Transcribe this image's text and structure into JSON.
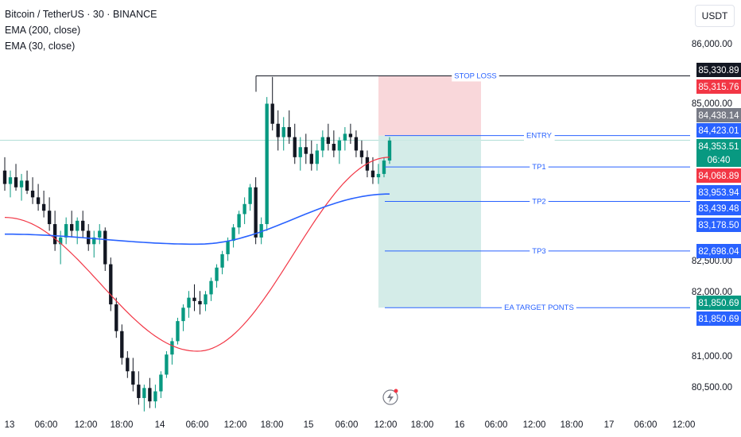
{
  "header": {
    "title": "Bitcoin / TetherUS · 30 · BINANCE",
    "indicators": [
      "EMA (200, close)",
      "EMA (30, close)"
    ],
    "currency_button": "USDT"
  },
  "colors": {
    "up": "#089981",
    "down": "#131722",
    "ema30": "#f23645",
    "ema200": "#2962ff",
    "stop_zone": "#f7c9ce",
    "target_zone": "#cce9e4",
    "level_line": "#2962ff"
  },
  "chart_data": {
    "type": "candlestick",
    "title": "Bitcoin / TetherUS · 30 · BINANCE",
    "symbol": "BTCUSDT",
    "interval": "30",
    "exchange": "BINANCE",
    "ylim": [
      80250,
      86450
    ],
    "y_ticks": [
      "86,000.00",
      "85,000.00",
      "82,500.00",
      "82,000.00",
      "81,000.00",
      "80,500.00"
    ],
    "x_ticks": [
      "13",
      "06:00",
      "12:00",
      "18:00",
      "14",
      "06:00",
      "12:00",
      "18:00",
      "15",
      "06:00",
      "12:00",
      "18:00",
      "16",
      "06:00",
      "12:00",
      "18:00",
      "17",
      "06:00",
      "12:00"
    ],
    "candles_approx": [
      [
        83900,
        84100,
        83600,
        83700
      ],
      [
        83700,
        83900,
        83500,
        83800
      ],
      [
        83800,
        84000,
        83600,
        83650
      ],
      [
        83650,
        83850,
        83450,
        83750
      ],
      [
        83750,
        83900,
        83550,
        83600
      ],
      [
        83600,
        83800,
        83400,
        83500
      ],
      [
        83500,
        83700,
        83300,
        83400
      ],
      [
        83400,
        83600,
        83200,
        83300
      ],
      [
        83300,
        83500,
        83000,
        83100
      ],
      [
        83100,
        83300,
        82700,
        82800
      ],
      [
        82800,
        83000,
        82500,
        82900
      ],
      [
        82900,
        83200,
        82800,
        83100
      ],
      [
        83100,
        83300,
        82900,
        83000
      ],
      [
        83000,
        83200,
        82800,
        83150
      ],
      [
        83150,
        83300,
        82900,
        83000
      ],
      [
        83000,
        83100,
        82700,
        82800
      ],
      [
        82800,
        83000,
        82600,
        82900
      ],
      [
        82900,
        83100,
        82800,
        83000
      ],
      [
        83000,
        83050,
        82400,
        82500
      ],
      [
        82500,
        82600,
        81800,
        81900
      ],
      [
        81900,
        82000,
        81400,
        81500
      ],
      [
        81500,
        81600,
        81000,
        81100
      ],
      [
        81100,
        81200,
        80800,
        80900
      ],
      [
        80900,
        81100,
        80600,
        80700
      ],
      [
        80700,
        80900,
        80400,
        80500
      ],
      [
        80500,
        80700,
        80300,
        80650
      ],
      [
        80650,
        80800,
        80350,
        80450
      ],
      [
        80450,
        80700,
        80350,
        80600
      ],
      [
        80600,
        80900,
        80500,
        80850
      ],
      [
        80850,
        81200,
        80800,
        81150
      ],
      [
        81150,
        81400,
        81000,
        81350
      ],
      [
        81350,
        81700,
        81300,
        81650
      ],
      [
        81650,
        81900,
        81500,
        81850
      ],
      [
        81850,
        82100,
        81700,
        82000
      ],
      [
        82000,
        82200,
        81800,
        81950
      ],
      [
        81950,
        82100,
        81750,
        81900
      ],
      [
        81900,
        82100,
        81800,
        82050
      ],
      [
        82050,
        82300,
        81950,
        82250
      ],
      [
        82250,
        82500,
        82150,
        82450
      ],
      [
        82450,
        82700,
        82350,
        82650
      ],
      [
        82650,
        82900,
        82550,
        82850
      ],
      [
        82850,
        83100,
        82750,
        83050
      ],
      [
        83050,
        83300,
        82950,
        83250
      ],
      [
        83250,
        83500,
        83100,
        83400
      ],
      [
        83400,
        83700,
        83300,
        83650
      ],
      [
        83650,
        83800,
        82800,
        82900
      ],
      [
        82900,
        83200,
        82800,
        83100
      ],
      [
        83100,
        85000,
        83000,
        84900
      ],
      [
        84900,
        85300,
        84500,
        84600
      ],
      [
        84600,
        84800,
        84200,
        84400
      ],
      [
        84400,
        84700,
        84200,
        84550
      ],
      [
        84550,
        84800,
        84300,
        84400
      ],
      [
        84400,
        84600,
        84000,
        84100
      ],
      [
        84100,
        84400,
        83900,
        84250
      ],
      [
        84250,
        84450,
        84000,
        84150
      ],
      [
        84150,
        84350,
        83900,
        84000
      ],
      [
        84000,
        84300,
        83900,
        84200
      ],
      [
        84200,
        84500,
        84100,
        84400
      ],
      [
        84400,
        84600,
        84200,
        84300
      ],
      [
        84300,
        84500,
        84100,
        84200
      ],
      [
        84200,
        84400,
        84000,
        84350
      ],
      [
        84350,
        84550,
        84200,
        84450
      ],
      [
        84450,
        84600,
        84300,
        84400
      ],
      [
        84400,
        84500,
        84100,
        84200
      ],
      [
        84200,
        84350,
        84000,
        84100
      ],
      [
        84100,
        84200,
        83800,
        83900
      ],
      [
        83900,
        84100,
        83700,
        83800
      ],
      [
        83800,
        84000,
        83700,
        83850
      ],
      [
        83850,
        84100,
        83800,
        84050
      ],
      [
        84050,
        84400,
        84000,
        84350
      ]
    ],
    "series": [
      {
        "name": "EMA (30, close)",
        "approx_values_start_mid_end": [
          83200,
          81200,
          84100
        ]
      },
      {
        "name": "EMA (200, close)",
        "approx_values_start_mid_end": [
          82950,
          82800,
          83550
        ]
      }
    ],
    "annotations": [
      {
        "label": "STOP LOSS",
        "price": 85315.76
      },
      {
        "label": "ENTRY",
        "price": 84423.01
      },
      {
        "label": "TP1",
        "price": 83953.94
      },
      {
        "label": "TP2",
        "price": 83439.48
      },
      {
        "label": "TP3",
        "price": 82698.04
      },
      {
        "label": "EA TARGET PONTS",
        "price": 81850.69
      }
    ]
  },
  "price_labels": [
    {
      "text": "85,330.89",
      "bg": "#131722"
    },
    {
      "text": "85,315.76",
      "bg": "#f23645"
    },
    {
      "text": "84,438.14",
      "bg": "#787b86"
    },
    {
      "text": "84,423.01",
      "bg": "#2962ff"
    },
    {
      "text": "84,353.51",
      "bg": "#089981"
    },
    {
      "text": "06:40",
      "bg": "#089981"
    },
    {
      "text": "84,068.89",
      "bg": "#f23645"
    },
    {
      "text": "83,953.94",
      "bg": "#2962ff"
    },
    {
      "text": "83,439.48",
      "bg": "#2962ff"
    },
    {
      "text": "83,178.50",
      "bg": "#2962ff"
    },
    {
      "text": "82,698.04",
      "bg": "#2962ff"
    },
    {
      "text": "81,850.69",
      "bg": "#089981"
    },
    {
      "text": "81,850.69",
      "bg": "#2962ff"
    }
  ]
}
